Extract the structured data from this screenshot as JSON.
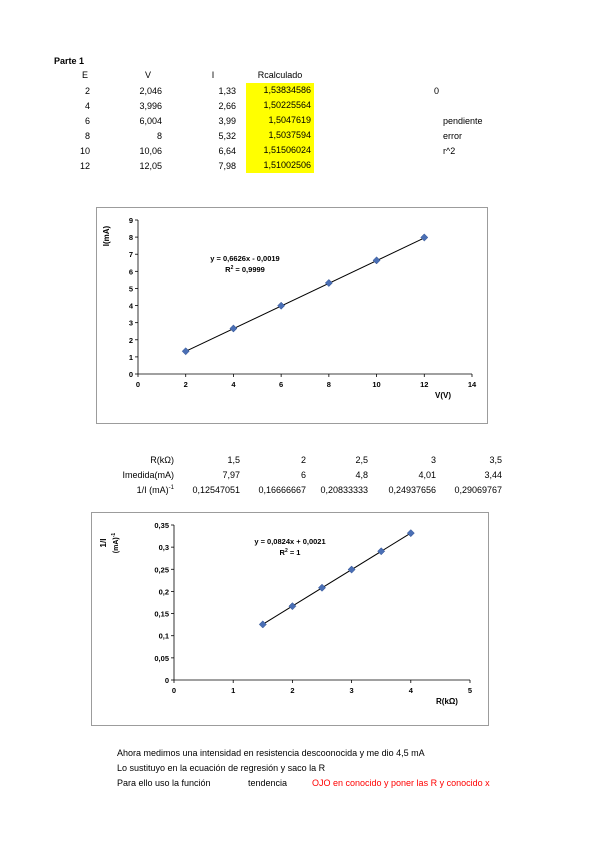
{
  "section_title": "Parte 1",
  "table1": {
    "headers": [
      "E",
      "V",
      "I",
      "Rcalculado"
    ],
    "rows": [
      [
        "2",
        "2,046",
        "1,33",
        "1,53834586"
      ],
      [
        "4",
        "3,996",
        "2,66",
        "1,50225564"
      ],
      [
        "6",
        "6,004",
        "3,99",
        "1,5047619"
      ],
      [
        "8",
        "8",
        "5,32",
        "1,5037594"
      ],
      [
        "10",
        "10,06",
        "6,64",
        "1,51506024"
      ],
      [
        "12",
        "12,05",
        "7,98",
        "1,51002506"
      ]
    ],
    "side_value": "0",
    "side_labels": [
      "pendiente",
      "error",
      "r^2"
    ]
  },
  "table2": {
    "row_labels": [
      "R(kΩ)",
      "Imedida(mA)",
      "1/I (mA)"
    ],
    "row_label_sup": "-1",
    "rows": [
      [
        "1,5",
        "2",
        "2,5",
        "3",
        "3,5"
      ],
      [
        "7,97",
        "6",
        "4,8",
        "4,01",
        "3,44"
      ],
      [
        "0,12547051",
        "0,16666667",
        "0,20833333",
        "0,24937656",
        "0,29069767"
      ]
    ]
  },
  "chart_data": [
    {
      "type": "scatter",
      "title": "",
      "xlabel": "V(V)",
      "ylabel": "I(mA)",
      "xlim": [
        0,
        14
      ],
      "ylim": [
        0,
        9
      ],
      "xticks": [
        "0",
        "2",
        "4",
        "6",
        "8",
        "10",
        "12",
        "14"
      ],
      "yticks": [
        "0",
        "1",
        "2",
        "3",
        "4",
        "5",
        "6",
        "7",
        "8",
        "9"
      ],
      "x": [
        2,
        4,
        6,
        8,
        10,
        12
      ],
      "y": [
        1.33,
        2.66,
        3.99,
        5.32,
        6.64,
        7.98
      ],
      "trendline": {
        "slope": 0.6626,
        "intercept": -0.0019
      },
      "equation": "y = 0,6626x - 0,0019",
      "r2_label": "R",
      "r2_value": "= 0,9999",
      "marker_color": "#4a6fb5",
      "grid": false
    },
    {
      "type": "scatter",
      "title": "",
      "xlabel": "R(kΩ)",
      "ylabel": "1/I",
      "ylabel2": "(mA)",
      "ylabel2_sup": "-1",
      "xlim": [
        0,
        5
      ],
      "ylim": [
        0,
        0.35
      ],
      "xticks": [
        "0",
        "1",
        "2",
        "3",
        "4",
        "5"
      ],
      "yticks": [
        "0",
        "0,05",
        "0,1",
        "0,15",
        "0,2",
        "0,25",
        "0,3",
        "0,35"
      ],
      "x": [
        1.5,
        2,
        2.5,
        3,
        3.5,
        4
      ],
      "y": [
        0.1255,
        0.1667,
        0.2083,
        0.2494,
        0.2907,
        0.3316
      ],
      "trendline": {
        "slope": 0.0824,
        "intercept": 0.0021
      },
      "equation": "y = 0,0824x + 0,0021",
      "r2_label": "R",
      "r2_value": "= 1",
      "marker_color": "#4a6fb5",
      "grid": false
    }
  ],
  "notes": {
    "line1": "Ahora medimos una intensidad en resistencia descoonocida y me dio  4,5 mA",
    "line2": "Lo sustituyo en la ecuación de regresión y saco la R",
    "line3_a": "Para ello uso la función",
    "line3_b": "tendencia",
    "line3_c": "OJO en conocido y poner las R y conocido x"
  }
}
